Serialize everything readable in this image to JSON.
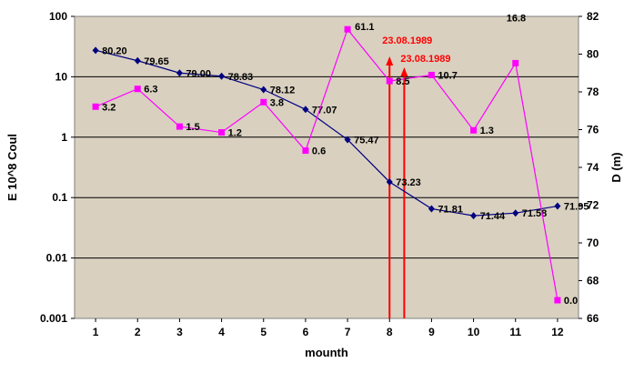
{
  "chart_data": {
    "type": "line",
    "xlabel": "mounth",
    "ylabel_left": "E 10^8 Coul",
    "ylabel_right": "D (m)",
    "x": [
      1,
      2,
      3,
      4,
      5,
      6,
      7,
      8,
      9,
      10,
      11,
      12
    ],
    "x_tick_labels": [
      "1",
      "2",
      "3",
      "4",
      "5",
      "6",
      "7",
      "8",
      "9",
      "10",
      "11",
      "12"
    ],
    "xlim": [
      0.5,
      12.5
    ],
    "ylim_left": [
      0.001,
      100
    ],
    "yscale_left": "log",
    "y_left_tick_labels": [
      "100",
      "10",
      "1",
      "0.1",
      "0.01",
      "0.001"
    ],
    "ylim_right": [
      66,
      82
    ],
    "y_right_tick_labels": [
      "82",
      "80",
      "78",
      "76",
      "74",
      "72",
      "70",
      "68",
      "66"
    ],
    "grid": "horizontal",
    "background": "#d9d0c0",
    "series": [
      {
        "axis": "right",
        "color": "#000080",
        "marker": "diamond",
        "values": [
          80.2,
          79.65,
          79.0,
          78.83,
          78.12,
          77.07,
          75.47,
          73.23,
          71.81,
          71.44,
          71.58,
          71.95
        ],
        "labels": [
          "80.20",
          "79.65",
          "79.00",
          "78.83",
          "78.12",
          "77.07",
          "75.47",
          "73.23",
          "71.81",
          "71.44",
          "71.58",
          "71.95"
        ]
      },
      {
        "axis": "left",
        "color": "#ff00ff",
        "marker": "square",
        "values": [
          3.2,
          6.3,
          1.5,
          1.2,
          3.8,
          0.6,
          61.1,
          8.5,
          10.7,
          1.3,
          16.8,
          0.002
        ],
        "labels": [
          "3.2",
          "6.3",
          "1.5",
          "1.2",
          "3.8",
          "0.6",
          "61.1",
          "8.5",
          "10.7",
          "1.3",
          "16.8",
          "0.0"
        ]
      }
    ],
    "annotations": [
      {
        "text": "23.08.1989",
        "x": 8.0,
        "color": "#ff0000"
      },
      {
        "text": "23.08.1989",
        "x": 8.35,
        "color": "#ff0000"
      }
    ]
  }
}
